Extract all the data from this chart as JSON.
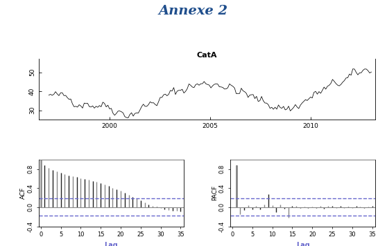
{
  "title": "Annexe 2",
  "title_color": "#1f4e8c",
  "title_fontsize": 14,
  "ts_title": "CatA",
  "ts_title_fontsize": 8,
  "ts_ylabel_ticks": [
    "30",
    "40",
    "50"
  ],
  "ts_yticks": [
    30,
    40,
    50
  ],
  "ts_xlim": [
    1996.5,
    2013.2
  ],
  "ts_ylim": [
    25,
    57
  ],
  "ts_xticks": [
    2000,
    2005,
    2010
  ],
  "acf_values": [
    1.0,
    0.88,
    0.82,
    0.78,
    0.75,
    0.72,
    0.69,
    0.67,
    0.65,
    0.63,
    0.61,
    0.59,
    0.57,
    0.55,
    0.53,
    0.5,
    0.47,
    0.44,
    0.41,
    0.38,
    0.34,
    0.3,
    0.26,
    0.22,
    0.18,
    0.14,
    0.1,
    0.06,
    0.03,
    0.01,
    -0.02,
    -0.04,
    -0.06,
    -0.07,
    -0.08,
    -0.09
  ],
  "pacf_values": [
    0.0,
    0.88,
    -0.15,
    -0.06,
    0.04,
    -0.05,
    0.03,
    -0.04,
    0.06,
    0.28,
    0.04,
    -0.1,
    0.05,
    -0.03,
    -0.22,
    0.02,
    0.02,
    -0.02,
    0.01,
    -0.02,
    0.01,
    -0.01,
    0.02,
    -0.03,
    0.03,
    0.02,
    -0.01,
    0.02,
    -0.02,
    0.01,
    -0.01,
    0.02,
    0.01,
    -0.02,
    0.01,
    0.02
  ],
  "acf_ci": 0.18,
  "lag_max": 35,
  "acf_ylim": [
    -0.4,
    1.0
  ],
  "acf_yticks": [
    -0.4,
    0.0,
    0.4,
    0.8
  ],
  "acf_ytick_labels": [
    "-0.4",
    "0.0",
    "0.4",
    "0.8"
  ],
  "lag_xticks": [
    0,
    5,
    10,
    15,
    20,
    25,
    30,
    35
  ],
  "bar_color_dark": "#222222",
  "bar_color_light": "#888888",
  "ci_color": "#6666cc",
  "zero_line_color": "#888888",
  "background_color": "#ffffff",
  "seed": 42
}
